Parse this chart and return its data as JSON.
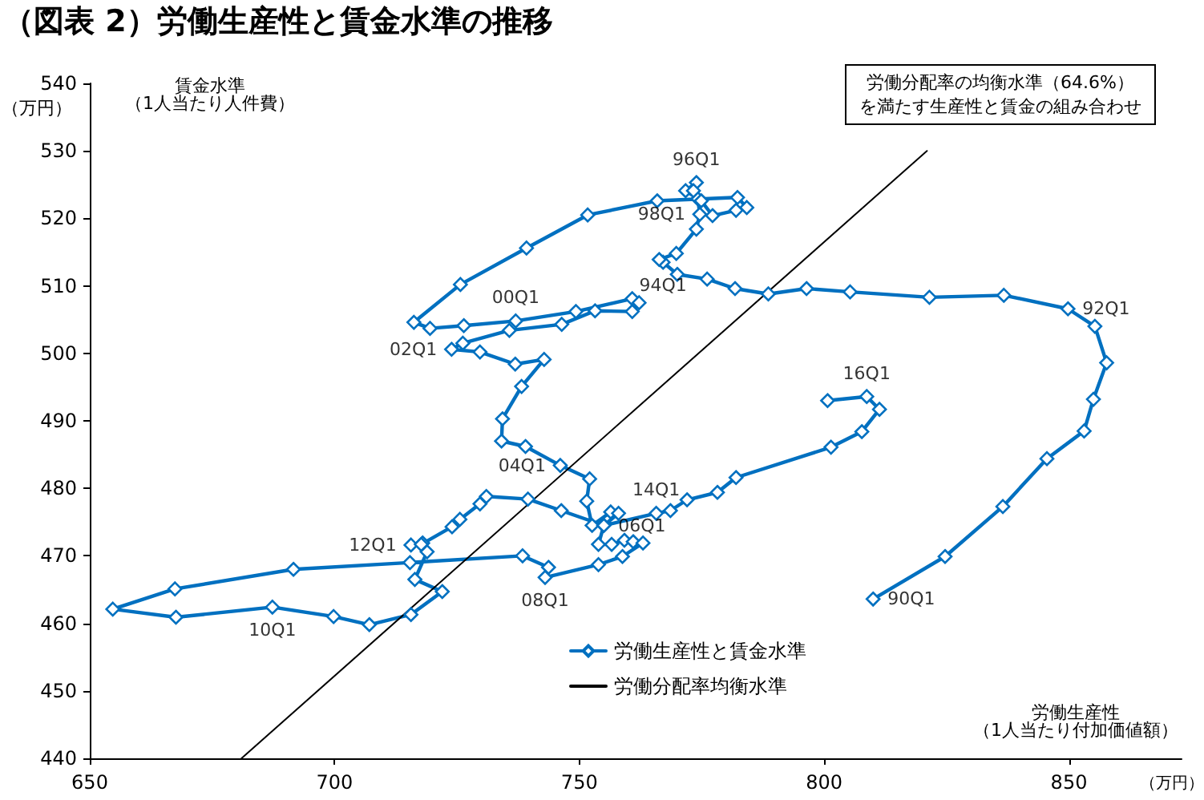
{
  "chart_data": {
    "type": "line",
    "title": "（図表 2）労働生産性と賃金水準の推移",
    "xlabel": "労働生産性（1人当たり付加価値額）",
    "ylabel": "賃金水準（1人当たり人件費）",
    "xlim": [
      650,
      873
    ],
    "xticks": [
      650,
      700,
      750,
      800,
      850
    ],
    "ylim": [
      440,
      540
    ],
    "yticks": [
      440,
      450,
      460,
      470,
      480,
      490,
      500,
      510,
      520,
      530,
      540
    ],
    "grid": false,
    "legend": "bottom",
    "marker": "diamond",
    "series": [
      {
        "name": "労働生産性と賃金水準",
        "color": "#0070c0",
        "x": [
          810.0,
          824.7,
          836.5,
          845.5,
          853.1,
          855.0,
          857.7,
          855.3,
          849.8,
          836.7,
          821.5,
          805.3,
          796.4,
          788.6,
          781.8,
          776.1,
          770.0,
          767.1,
          766.3,
          769.8,
          773.9,
          774.6,
          774.2,
          771.7,
          773.9,
          773.3,
          774.9,
          777.2,
          782.0,
          784.2,
          782.3,
          765.9,
          751.7,
          739.2,
          725.7,
          716.2,
          719.5,
          726.4,
          737.0,
          749.3,
          760.8,
          762.2,
          760.8,
          753.2,
          746.4,
          735.7,
          726.2,
          723.9,
          729.7,
          736.9,
          742.8,
          738.2,
          734.3,
          734.1,
          739.0,
          746.1,
          752.1,
          751.5,
          752.6,
          756.4,
          758.0,
          755.0,
          753.9,
          756.6,
          759.2,
          761.0,
          763.0,
          758.8,
          753.9,
          743.0,
          743.7,
          738.4,
          715.4,
          691.6,
          667.4,
          654.7,
          667.6,
          687.3,
          699.8,
          707.1,
          715.6,
          722.0,
          716.4,
          718.9,
          718.0,
          715.6,
          717.7,
          724.0,
          725.6,
          729.7,
          731.0,
          739.5,
          746.3,
          755.0,
          765.7,
          768.6,
          772.0,
          778.2,
          782.0,
          801.4,
          807.7,
          811.3,
          808.7,
          800.7
        ],
        "values": [
          463.6,
          469.9,
          477.3,
          484.4,
          488.5,
          493.2,
          498.6,
          504.0,
          506.6,
          508.6,
          508.3,
          509.1,
          509.6,
          508.8,
          509.6,
          511.0,
          511.7,
          513.5,
          513.9,
          514.8,
          518.4,
          520.6,
          522.9,
          524.1,
          525.3,
          524.1,
          522.6,
          520.4,
          521.2,
          521.6,
          523.1,
          522.6,
          520.5,
          515.6,
          510.2,
          504.6,
          503.7,
          504.1,
          504.8,
          506.2,
          508.1,
          507.5,
          506.2,
          506.3,
          504.3,
          503.4,
          501.5,
          500.6,
          500.2,
          498.4,
          499.1,
          495.1,
          490.3,
          487.0,
          486.2,
          483.4,
          481.4,
          478.1,
          474.5,
          476.5,
          476.3,
          474.5,
          471.7,
          471.7,
          472.3,
          472.1,
          471.9,
          469.9,
          468.7,
          466.8,
          468.3,
          470.0,
          469.0,
          468.0,
          465.1,
          462.1,
          460.9,
          462.4,
          461.0,
          459.8,
          461.3,
          464.7,
          466.5,
          470.6,
          471.9,
          471.6,
          471.7,
          474.3,
          475.4,
          477.7,
          478.8,
          478.4,
          476.7,
          474.5,
          476.3,
          476.7,
          478.3,
          479.4,
          481.6,
          486.1,
          488.4,
          491.7,
          493.6,
          493.0
        ]
      },
      {
        "name": "労働分配率均衡水準",
        "color": "#000000",
        "marker": "none",
        "x": [
          681,
          821
        ],
        "values": [
          440,
          530
        ]
      }
    ],
    "annotations": [
      "労働分配率の均衡水準（64.6%）を満たす生産性と賃金の組み合わせ",
      "（万円）",
      "（万円）",
      {
        "text": "90Q1",
        "x": 810.0,
        "y": 463.6
      },
      {
        "text": "92Q1",
        "x": 849.8,
        "y": 506.6
      },
      {
        "text": "94Q1",
        "x": 767.1,
        "y": 513.5
      },
      {
        "text": "96Q1",
        "x": 773.9,
        "y": 525.3
      },
      {
        "text": "98Q1",
        "x": 774.6,
        "y": 520.6
      },
      {
        "text": "00Q1",
        "x": 737.0,
        "y": 504.8
      },
      {
        "text": "02Q1",
        "x": 723.9,
        "y": 500.6
      },
      {
        "text": "04Q1",
        "x": 746.1,
        "y": 483.4
      },
      {
        "text": "06Q1",
        "x": 755.0,
        "y": 474.5
      },
      {
        "text": "08Q1",
        "x": 743.0,
        "y": 466.8
      },
      {
        "text": "10Q1",
        "x": 687.3,
        "y": 462.4
      },
      {
        "text": "12Q1",
        "x": 715.6,
        "y": 471.6
      },
      {
        "text": "14Q1",
        "x": 765.7,
        "y": 476.3
      },
      {
        "text": "16Q1",
        "x": 808.7,
        "y": 493.6
      }
    ]
  }
}
